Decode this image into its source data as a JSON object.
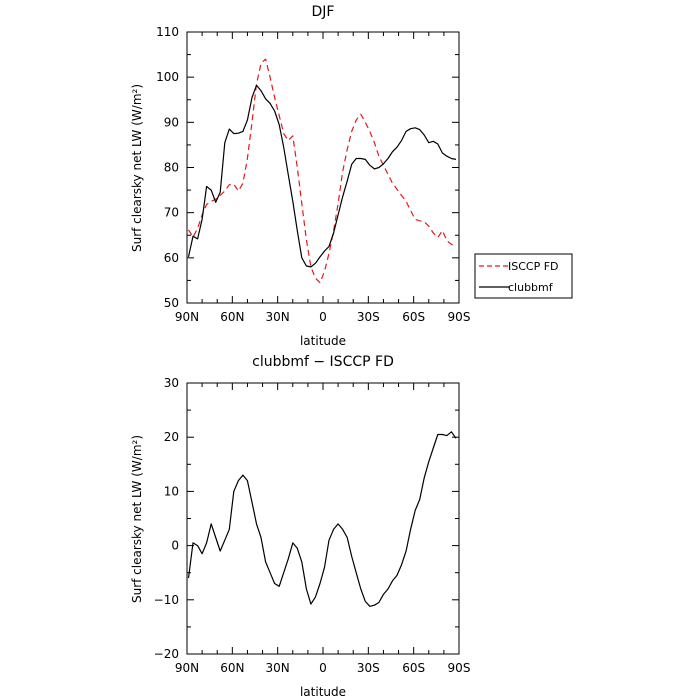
{
  "chart_data": [
    {
      "type": "line",
      "title": "DJF",
      "xlabel": "latitude",
      "ylabel": "Surf clearsky net LW (W/m²)",
      "xlim": [
        90,
        -90
      ],
      "ylim": [
        50,
        110
      ],
      "xticks": [
        90,
        60,
        30,
        0,
        -30,
        -60,
        -90
      ],
      "xtick_labels": [
        "90N",
        "60N",
        "30N",
        "0",
        "30S",
        "60S",
        "90S"
      ],
      "yticks": [
        50,
        60,
        70,
        80,
        90,
        100,
        110
      ],
      "ytick_labels": [
        "50",
        "60",
        "70",
        "80",
        "90",
        "100",
        "110"
      ],
      "legend_position": "right",
      "series": [
        {
          "name": "ISCCP FD",
          "color": "#e41a1c",
          "dash": "dashed",
          "x": [
            89,
            86,
            83,
            80,
            77,
            74,
            71,
            68,
            65,
            62,
            59,
            56,
            53,
            50,
            47,
            44,
            41,
            38,
            35,
            32,
            29,
            26,
            23,
            20,
            17,
            14,
            11,
            8,
            5,
            2,
            -1,
            -4,
            -7,
            -10,
            -13,
            -16,
            -19,
            -22,
            -25,
            -28,
            -31,
            -34,
            -37,
            -40,
            -43,
            -46,
            -49,
            -52,
            -55,
            -58,
            -61,
            -64,
            -67,
            -70,
            -73,
            -76,
            -79,
            -82,
            -85,
            -88
          ],
          "y": [
            66.2,
            64.6,
            66.5,
            69.5,
            71.8,
            72.5,
            73,
            73.8,
            74.8,
            76.2,
            76.3,
            74.8,
            76.5,
            82,
            90,
            98.5,
            103,
            104,
            100,
            95.5,
            91.5,
            87.5,
            86,
            87,
            80,
            72,
            64,
            58,
            55.5,
            54.5,
            57,
            61,
            66,
            72,
            79,
            84,
            88,
            90.5,
            91.8,
            90,
            88,
            85.5,
            82.5,
            80.5,
            78.5,
            76.5,
            75.2,
            73.8,
            72.5,
            70.5,
            68.5,
            68.2,
            68,
            67,
            65.5,
            64.5,
            66,
            63.8,
            63,
            62.5
          ]
        },
        {
          "name": "clubbmf",
          "color": "#000000",
          "dash": "solid",
          "x": [
            89,
            86,
            83,
            80,
            77,
            74,
            71,
            68,
            65,
            62,
            59,
            56,
            53,
            50,
            47,
            44,
            41,
            38,
            35,
            32,
            29,
            26,
            23,
            20,
            17,
            14,
            11,
            8,
            5,
            2,
            -1,
            -4,
            -7,
            -10,
            -13,
            -16,
            -19,
            -22,
            -25,
            -28,
            -31,
            -34,
            -37,
            -40,
            -43,
            -46,
            -49,
            -52,
            -55,
            -58,
            -61,
            -64,
            -67,
            -70,
            -73,
            -76,
            -79,
            -82,
            -85,
            -88
          ],
          "y": [
            60.2,
            64.8,
            64.2,
            68.5,
            75.8,
            75,
            72.3,
            74.5,
            85.5,
            88.5,
            87.5,
            87.6,
            88,
            90.5,
            95.5,
            98.2,
            97,
            95.2,
            94.2,
            92.5,
            89.5,
            84.5,
            78.5,
            72.5,
            66,
            60,
            58.2,
            58,
            58.8,
            60.2,
            61.5,
            62.5,
            65.5,
            69.5,
            73.5,
            77,
            80.7,
            82,
            82,
            81.8,
            80.5,
            79.7,
            80,
            80.8,
            82,
            83.5,
            84.5,
            86,
            88,
            88.6,
            88.8,
            88.4,
            87.2,
            85.5,
            85.8,
            85.2,
            83.2,
            82.5,
            82,
            81.8
          ]
        }
      ]
    },
    {
      "type": "line",
      "title": "clubbmf − ISCCP FD",
      "xlabel": "latitude",
      "ylabel": "Surf clearsky net LW (W/m²)",
      "xlim": [
        90,
        -90
      ],
      "ylim": [
        -20,
        30
      ],
      "xticks": [
        90,
        60,
        30,
        0,
        -30,
        -60,
        -90
      ],
      "xtick_labels": [
        "90N",
        "60N",
        "30N",
        "0",
        "30S",
        "60S",
        "90S"
      ],
      "yticks": [
        -20,
        -10,
        0,
        10,
        20,
        30
      ],
      "ytick_labels": [
        "−20",
        "−10",
        "0",
        "10",
        "20",
        "30"
      ],
      "series": [
        {
          "color": "#000000",
          "dash": "solid",
          "x": [
            89,
            86,
            83,
            80,
            77,
            74,
            71,
            68,
            65,
            62,
            59,
            56,
            53,
            50,
            47,
            44,
            41,
            38,
            35,
            32,
            29,
            26,
            23,
            20,
            17,
            14,
            11,
            8,
            5,
            2,
            -1,
            -4,
            -7,
            -10,
            -13,
            -16,
            -19,
            -22,
            -25,
            -28,
            -31,
            -34,
            -37,
            -40,
            -43,
            -46,
            -49,
            -52,
            -55,
            -58,
            -61,
            -64,
            -67,
            -70,
            -73,
            -76,
            -79,
            -82,
            -85,
            -88
          ],
          "y": [
            -6,
            0.5,
            0,
            -1.5,
            0.5,
            4,
            1.5,
            -1,
            1,
            3,
            10,
            12,
            13,
            12,
            8,
            4,
            1.5,
            -3,
            -5,
            -7,
            -7.5,
            -5,
            -2.5,
            0.5,
            -0.5,
            -3,
            -8,
            -10.8,
            -9.5,
            -7,
            -4,
            1,
            3,
            4,
            3,
            1.5,
            -2,
            -5,
            -8,
            -10.3,
            -11.2,
            -11,
            -10.5,
            -9,
            -8,
            -6.5,
            -5.5,
            -3.5,
            -1,
            3,
            6.5,
            8.5,
            12.5,
            15.5,
            18,
            20.5,
            20.5,
            20.3,
            21,
            19.8
          ]
        }
      ]
    }
  ]
}
